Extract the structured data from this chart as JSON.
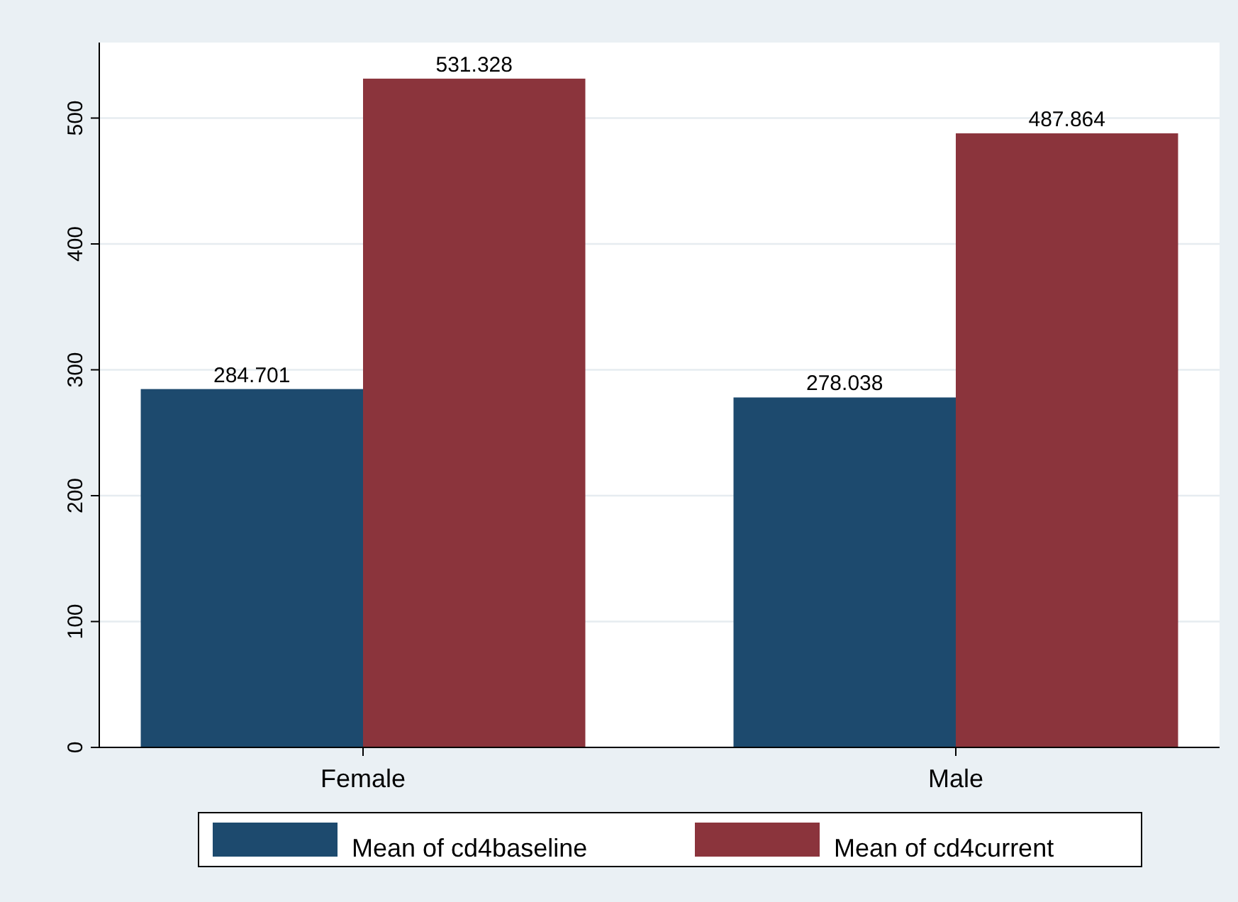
{
  "chart_data": {
    "type": "bar",
    "categories": [
      "Female",
      "Male"
    ],
    "series": [
      {
        "name": "Mean of cd4baseline",
        "color": "#1d4a6e",
        "values": [
          284.701,
          278.038
        ]
      },
      {
        "name": "Mean of cd4current",
        "color": "#8b343c",
        "values": [
          531.328,
          487.864
        ]
      }
    ],
    "ylim": [
      0,
      560
    ],
    "yticks": [
      0,
      100,
      200,
      300,
      400,
      500
    ],
    "grid": "y",
    "legend": "bottom",
    "data_labels": true
  }
}
